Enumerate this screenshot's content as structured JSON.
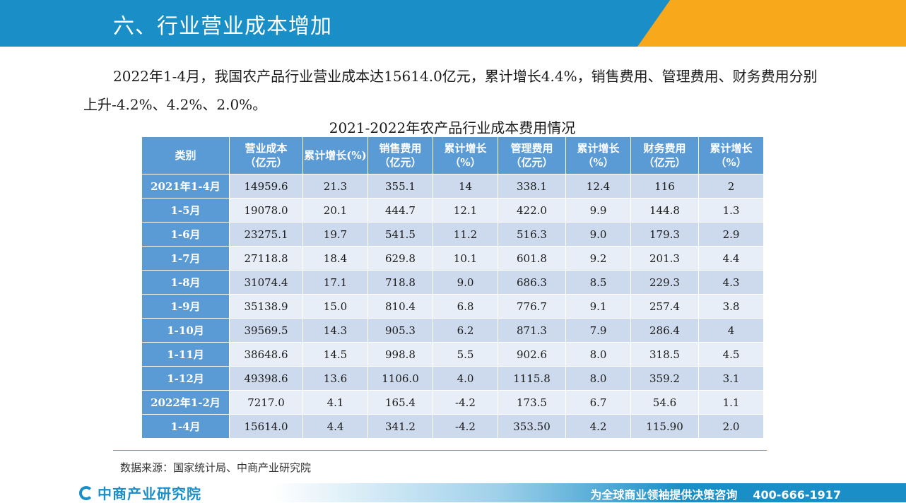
{
  "header": {
    "title": "六、行业营业成本增加"
  },
  "intro": {
    "text": "2022年1-4月，我国农产品行业营业成本达15614.0亿元，累计增长4.4%，销售费用、管理费用、财务费用分别上升-4.2%、4.2%、2.0%。"
  },
  "table": {
    "title": "2021-2022年农产品行业成本费用情况",
    "headers": [
      [
        "类别"
      ],
      [
        "营业成本",
        "（亿元）"
      ],
      [
        "累计增长(%)"
      ],
      [
        "销售费用",
        "（亿元）"
      ],
      [
        "累计增长",
        "（%）"
      ],
      [
        "管理费用",
        "（亿元）"
      ],
      [
        "累计增长",
        "（%）"
      ],
      [
        "财务费用",
        "（亿元）"
      ],
      [
        "累计增长",
        "（%）"
      ]
    ],
    "rows": [
      [
        "2021年1-4月",
        "14959.6",
        "21.3",
        "355.1",
        "14",
        "338.1",
        "12.4",
        "116",
        "2"
      ],
      [
        "1-5月",
        "19078.0",
        "20.1",
        "444.7",
        "12.1",
        "422.0",
        "9.9",
        "144.8",
        "1.3"
      ],
      [
        "1-6月",
        "23275.1",
        "19.7",
        "541.5",
        "11.2",
        "516.3",
        "9.0",
        "179.3",
        "2.9"
      ],
      [
        "1-7月",
        "27118.8",
        "18.4",
        "629.8",
        "10.1",
        "601.8",
        "9.2",
        "201.3",
        "4.4"
      ],
      [
        "1-8月",
        "31074.4",
        "17.1",
        "718.8",
        "9.0",
        "686.3",
        "8.5",
        "229.3",
        "4.3"
      ],
      [
        "1-9月",
        "35138.9",
        "15.0",
        "810.4",
        "6.8",
        "776.7",
        "9.1",
        "257.4",
        "3.8"
      ],
      [
        "1-10月",
        "39569.5",
        "14.3",
        "905.3",
        "6.2",
        "871.3",
        "7.9",
        "286.4",
        "4"
      ],
      [
        "1-11月",
        "38648.6",
        "14.5",
        "998.8",
        "5.5",
        "902.6",
        "8.0",
        "318.5",
        "4.5"
      ],
      [
        "1-12月",
        "49398.6",
        "13.6",
        "1106.0",
        "4.0",
        "1115.8",
        "8.0",
        "359.2",
        "3.1"
      ],
      [
        "2022年1-2月",
        "7217.0",
        "4.1",
        "165.4",
        "-4.2",
        "173.5",
        "6.7",
        "54.6",
        "1.1"
      ],
      [
        "1-4月",
        "15614.0",
        "4.4",
        "341.2",
        "-4.2",
        "353.50",
        "4.2",
        "115.90",
        "2.0"
      ]
    ]
  },
  "source": {
    "text": "数据来源：国家统计局、中商产业研究院"
  },
  "footer": {
    "logo_text": "中商产业研究院",
    "slogan": "为全球商业领袖提供决策咨询",
    "phone": "400-666-1917"
  },
  "colors": {
    "primary_blue": "#1a8fc7",
    "accent_orange": "#f7a81b",
    "table_header": "#5b9bd5"
  }
}
